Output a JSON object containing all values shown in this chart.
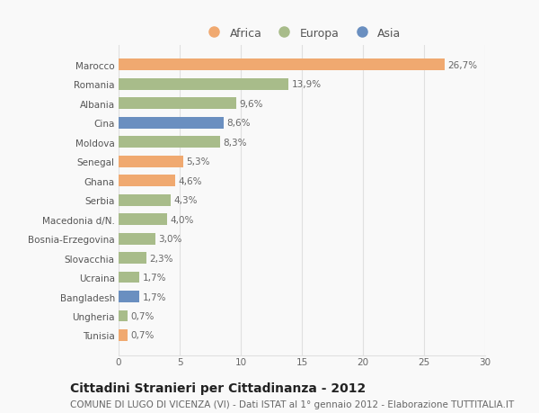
{
  "countries": [
    "Marocco",
    "Romania",
    "Albania",
    "Cina",
    "Moldova",
    "Senegal",
    "Ghana",
    "Serbia",
    "Macedonia d/N.",
    "Bosnia-Erzegovina",
    "Slovacchia",
    "Ucraina",
    "Bangladesh",
    "Ungheria",
    "Tunisia"
  ],
  "values": [
    26.7,
    13.9,
    9.6,
    8.6,
    8.3,
    5.3,
    4.6,
    4.3,
    4.0,
    3.0,
    2.3,
    1.7,
    1.7,
    0.7,
    0.7
  ],
  "labels": [
    "26,7%",
    "13,9%",
    "9,6%",
    "8,6%",
    "8,3%",
    "5,3%",
    "4,6%",
    "4,3%",
    "4,0%",
    "3,0%",
    "2,3%",
    "1,7%",
    "1,7%",
    "0,7%",
    "0,7%"
  ],
  "continents": [
    "Africa",
    "Europa",
    "Europa",
    "Asia",
    "Europa",
    "Africa",
    "Africa",
    "Europa",
    "Europa",
    "Europa",
    "Europa",
    "Europa",
    "Asia",
    "Europa",
    "Africa"
  ],
  "colors": {
    "Africa": "#F0A970",
    "Europa": "#A8BC8A",
    "Asia": "#6A8FC0"
  },
  "title": "Cittadini Stranieri per Cittadinanza - 2012",
  "subtitle": "COMUNE DI LUGO DI VICENZA (VI) - Dati ISTAT al 1° gennaio 2012 - Elaborazione TUTTITALIA.IT",
  "xlim": [
    0,
    30
  ],
  "xticks": [
    0,
    5,
    10,
    15,
    20,
    25,
    30
  ],
  "background_color": "#f9f9f9",
  "grid_color": "#e0e0e0",
  "title_fontsize": 10,
  "subtitle_fontsize": 7.5,
  "label_fontsize": 7.5,
  "tick_fontsize": 7.5,
  "legend_fontsize": 9
}
